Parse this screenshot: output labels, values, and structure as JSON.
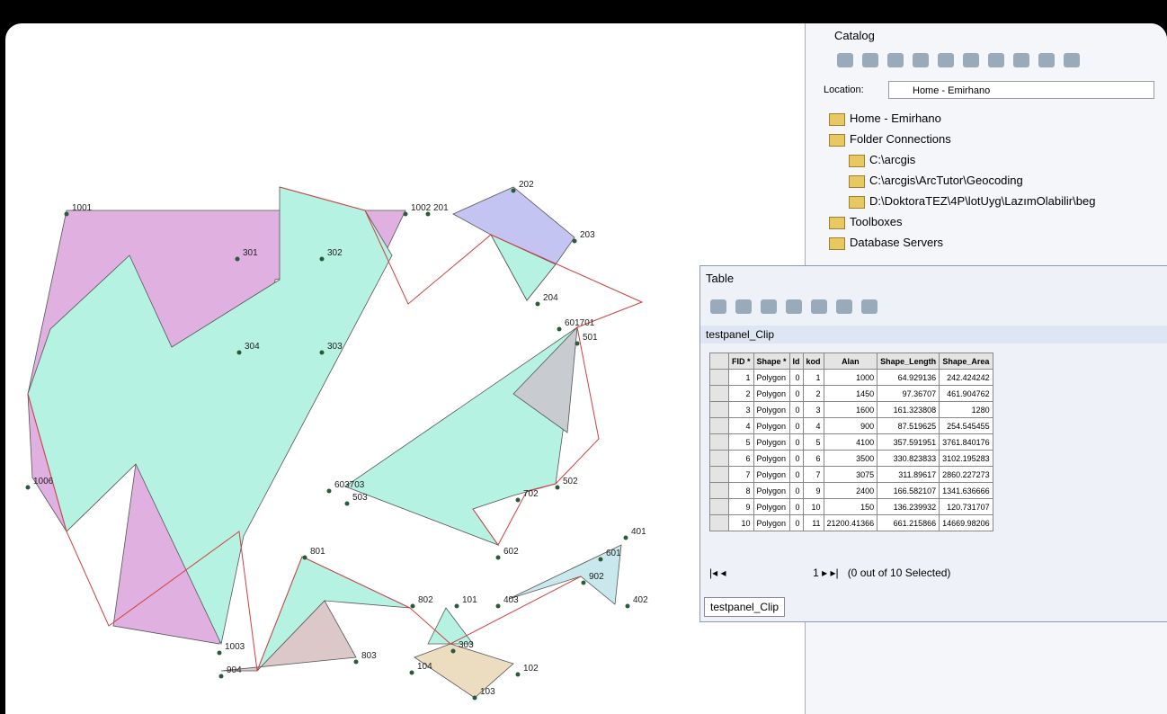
{
  "map": {
    "labels": [
      "1001",
      "1002",
      "201",
      "202",
      "203",
      "204",
      "301",
      "302",
      "304",
      "303",
      "601701",
      "501",
      "1006",
      "603703",
      "503",
      "702",
      "502",
      "602",
      "801",
      "802",
      "101",
      "403",
      "401",
      "601",
      "902",
      "402",
      "1003",
      "803",
      "904",
      "303",
      "104",
      "102",
      "103"
    ]
  },
  "catalog": {
    "title": "Catalog",
    "location_label": "Location:",
    "location_value": "Home - Emirhano",
    "tree": [
      "Home - Emirhano",
      "Folder Connections",
      "C:\\arcgis",
      "C:\\arcgis\\ArcTutor\\Geocoding",
      "D:\\DoktoraTEZ\\4P\\lotUyg\\LazımOlabilir\\beg",
      "Toolboxes",
      "Database Servers"
    ]
  },
  "table": {
    "title": "Table",
    "layer": "testpanel_Clip",
    "columns": [
      "FID *",
      "Shape *",
      "Id",
      "kod",
      "Alan",
      "Shape_Length",
      "Shape_Area"
    ],
    "rows": [
      [
        "1",
        "Polygon",
        "0",
        "1",
        "1000",
        "64.929136",
        "242.424242"
      ],
      [
        "2",
        "Polygon",
        "0",
        "2",
        "1450",
        "97.36707",
        "461.904762"
      ],
      [
        "3",
        "Polygon",
        "0",
        "3",
        "1600",
        "161.323808",
        "1280"
      ],
      [
        "4",
        "Polygon",
        "0",
        "4",
        "900",
        "87.519625",
        "254.545455"
      ],
      [
        "5",
        "Polygon",
        "0",
        "5",
        "4100",
        "357.591951",
        "3761.840176"
      ],
      [
        "6",
        "Polygon",
        "0",
        "6",
        "3500",
        "330.823833",
        "3102.195283"
      ],
      [
        "7",
        "Polygon",
        "0",
        "7",
        "3075",
        "311.89617",
        "2860.227273"
      ],
      [
        "8",
        "Polygon",
        "0",
        "9",
        "2400",
        "166.582107",
        "1341.636666"
      ],
      [
        "9",
        "Polygon",
        "0",
        "10",
        "150",
        "136.239932",
        "120.731707"
      ],
      [
        "10",
        "Polygon",
        "0",
        "11",
        "21200.41366",
        "661.215866",
        "14669.98206"
      ]
    ],
    "record": "1",
    "selection": "(0 out of 10 Selected)",
    "tab": "testpanel_Clip"
  }
}
